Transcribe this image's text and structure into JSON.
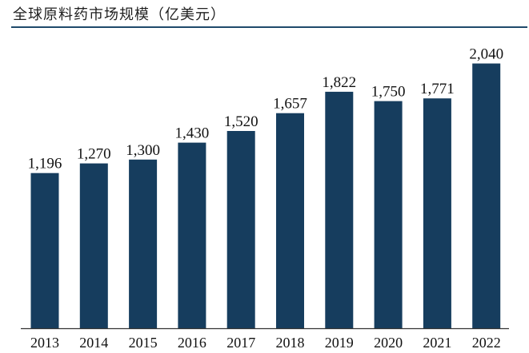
{
  "chart_data": {
    "type": "bar",
    "title": "全球原料药市场规模（亿美元）",
    "xlabel": "",
    "ylabel": "",
    "categories": [
      "2013",
      "2014",
      "2015",
      "2016",
      "2017",
      "2018",
      "2019",
      "2020",
      "2021",
      "2022"
    ],
    "values": [
      1196,
      1270,
      1300,
      1430,
      1520,
      1657,
      1822,
      1750,
      1771,
      2040
    ],
    "value_labels": [
      "1,196",
      "1,270",
      "1,300",
      "1,430",
      "1,520",
      "1,657",
      "1,822",
      "1,750",
      "1,771",
      "2,040"
    ],
    "ylim": [
      0,
      2300
    ],
    "grid": false,
    "legend": "none",
    "colors": {
      "bar": "#163d5e",
      "axis": "#333333",
      "title_rule": "#1f4a6b"
    }
  }
}
